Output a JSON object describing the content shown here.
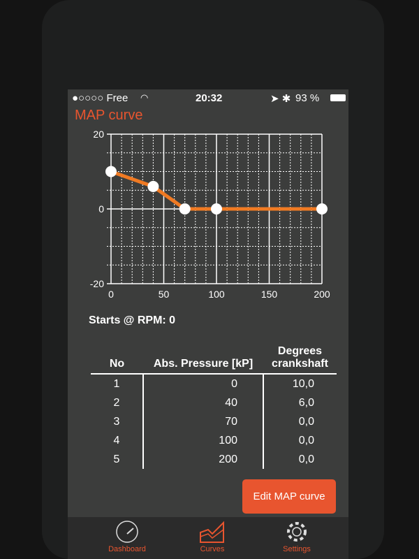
{
  "status_bar": {
    "carrier": "●○○○○ Free",
    "time": "20:32",
    "battery": "93 %"
  },
  "header": {
    "title": "MAP curve"
  },
  "chart_data": {
    "type": "line",
    "x": [
      0,
      40,
      70,
      100,
      200
    ],
    "y": [
      10,
      6,
      0,
      0,
      0
    ],
    "xlim": [
      0,
      200
    ],
    "ylim": [
      -20,
      20
    ],
    "xticks": [
      "0",
      "50",
      "100",
      "150",
      "200"
    ],
    "yticks": [
      "-20",
      "0",
      "20"
    ],
    "grid": true,
    "line_color": "#f07a23",
    "marker_color": "#ffffff"
  },
  "starts_label": "Starts @ RPM: 0",
  "table": {
    "headers": [
      "No",
      "Abs. Pressure [kP]",
      "Degrees crankshaft"
    ],
    "rows": [
      [
        "1",
        "0",
        "10,0"
      ],
      [
        "2",
        "40",
        "6,0"
      ],
      [
        "3",
        "70",
        "0,0"
      ],
      [
        "4",
        "100",
        "0,0"
      ],
      [
        "5",
        "200",
        "0,0"
      ]
    ]
  },
  "edit_button": "Edit MAP curve",
  "tabs": [
    {
      "label": "Dashboard",
      "icon": "speedometer-icon"
    },
    {
      "label": "Curves",
      "icon": "curves-icon"
    },
    {
      "label": "Settings",
      "icon": "gear-icon"
    }
  ],
  "colors": {
    "accent": "#e8552f",
    "background": "#3c3d3c"
  }
}
